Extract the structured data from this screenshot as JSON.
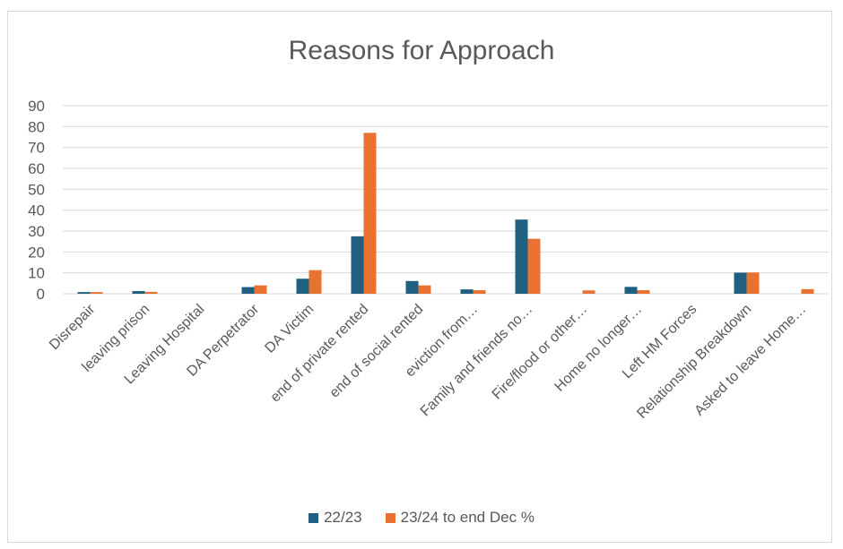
{
  "chart_data": {
    "type": "bar",
    "title": "Reasons for Approach",
    "categories": [
      "Disrepair",
      "leaving prison",
      "Leaving Hospital",
      "DA Perpetrator",
      "DA Victim",
      "end of private rented",
      "end of social rented",
      "eviction from…",
      "Family and friends no…",
      "Fire/flood or other…",
      "Home no longer…",
      "Left HM Forces",
      "Relationship Breakdown",
      "Asked to leave Home…"
    ],
    "series": [
      {
        "name": "22/23",
        "color": "#1f5f7f",
        "values": [
          0.8,
          1.3,
          0,
          3.2,
          7.2,
          27.5,
          6.1,
          2.1,
          35.5,
          0,
          3.3,
          0,
          10.1,
          0
        ]
      },
      {
        "name": "23/24 to end Dec %",
        "color": "#e97132",
        "values": [
          0.8,
          0.9,
          0,
          4.0,
          11.3,
          77.0,
          4.0,
          1.7,
          26.3,
          1.6,
          1.7,
          0,
          10.2,
          2.2
        ]
      }
    ],
    "yticks": [
      0,
      10,
      20,
      30,
      40,
      50,
      60,
      70,
      80,
      90
    ],
    "ylim": [
      0,
      90
    ],
    "grid": true,
    "legend_position": "bottom"
  }
}
